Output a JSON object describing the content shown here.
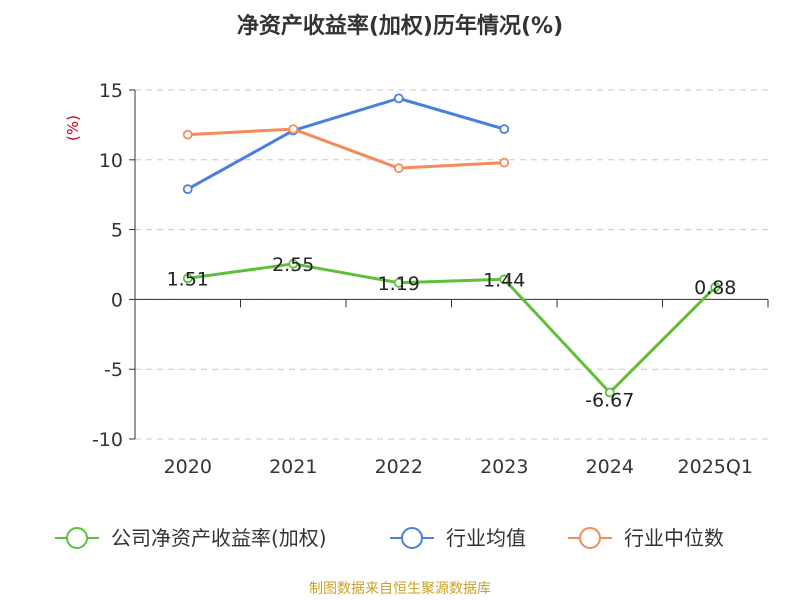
{
  "chart_data": {
    "type": "line",
    "title": "净资产收益率(加权)历年情况(%)",
    "ylabel": "(%)",
    "xlabel": "",
    "categories": [
      "2020",
      "2021",
      "2022",
      "2023",
      "2024",
      "2025Q1"
    ],
    "ylim": [
      -10,
      15
    ],
    "yticks": [
      15,
      10,
      5,
      0,
      -5,
      -10
    ],
    "grid": true,
    "legend_position": "bottom",
    "series": [
      {
        "name": "公司净资产收益率(加权)",
        "color": "#5dc03a",
        "values": [
          1.51,
          2.55,
          1.19,
          1.44,
          -6.67,
          0.88
        ],
        "labels": [
          "1.51",
          "2.55",
          "1.19",
          "1.44",
          "-6.67",
          "0.88"
        ]
      },
      {
        "name": "行业均值",
        "color": "#4a7fe0",
        "values": [
          7.9,
          12.1,
          14.4,
          12.2,
          null,
          null
        ]
      },
      {
        "name": "行业中位数",
        "color": "#f48b5a",
        "values": [
          11.8,
          12.2,
          9.4,
          9.8,
          null,
          null
        ]
      }
    ]
  },
  "source": "制图数据来自恒生聚源数据库"
}
